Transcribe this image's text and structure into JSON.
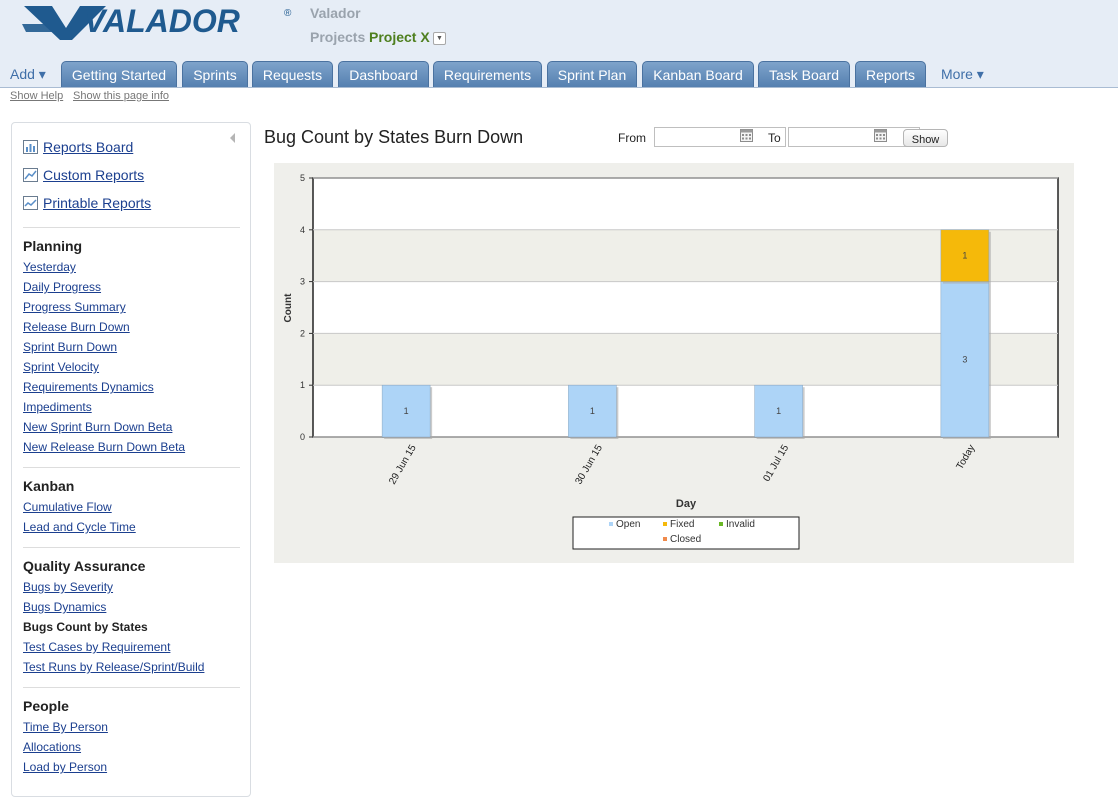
{
  "header": {
    "logo_text": "VALADOR",
    "logo_reg": "®",
    "company": "Valador",
    "projects_label": "Projects",
    "project_name": "Project X"
  },
  "nav": {
    "add_label": "Add ▾",
    "more_label": "More ▾",
    "tabs": [
      "Getting Started",
      "Sprints",
      "Requests",
      "Dashboard",
      "Requirements",
      "Sprint Plan",
      "Kanban Board",
      "Task Board",
      "Reports"
    ]
  },
  "help": {
    "show_help": "Show Help",
    "show_page_info": "Show this page info"
  },
  "sidebar": {
    "top_links": [
      "Reports Board",
      "Custom Reports",
      "Printable Reports"
    ],
    "sections": [
      {
        "title": "Planning",
        "items": [
          "Yesterday",
          "Daily Progress",
          "Progress Summary",
          "Release Burn Down",
          "Sprint Burn Down",
          "Sprint Velocity",
          "Requirements Dynamics",
          "Impediments",
          "New Sprint Burn Down Beta",
          "New Release Burn Down Beta"
        ]
      },
      {
        "title": "Kanban",
        "items": [
          "Cumulative Flow",
          "Lead and Cycle Time"
        ]
      },
      {
        "title": "Quality Assurance",
        "items": [
          "Bugs by Severity",
          "Bugs Dynamics",
          "Bugs Count by States",
          "Test Cases by Requirement",
          "Test Runs by Release/Sprint/Build"
        ]
      },
      {
        "title": "People",
        "items": [
          "Time By Person",
          "Allocations",
          "Load by Person"
        ]
      }
    ],
    "current_item": "Bugs Count by States"
  },
  "report": {
    "title": "Bug Count by States Burn Down",
    "from_label": "From",
    "to_label": "To",
    "from_value": "",
    "to_value": "",
    "show_button": "Show"
  },
  "chart_data": {
    "type": "bar",
    "stacked": true,
    "categories": [
      "29 Jun 15",
      "30 Jun 15",
      "01 Jul 15",
      "Today"
    ],
    "series": [
      {
        "name": "Open",
        "values": [
          1,
          1,
          1,
          3
        ],
        "color": "#add4f7"
      },
      {
        "name": "Fixed",
        "values": [
          0,
          0,
          0,
          1
        ],
        "color": "#f5b90a"
      },
      {
        "name": "Invalid",
        "values": [
          0,
          0,
          0,
          0
        ],
        "color": "#6ab826"
      },
      {
        "name": "Closed",
        "values": [
          0,
          0,
          0,
          0
        ],
        "color": "#f08a4b"
      }
    ],
    "xlabel": "Day",
    "ylabel": "Count",
    "ylim": [
      0,
      5
    ],
    "yticks": [
      0,
      1,
      2,
      3,
      4,
      5
    ],
    "grid": true,
    "legend_position": "bottom"
  }
}
